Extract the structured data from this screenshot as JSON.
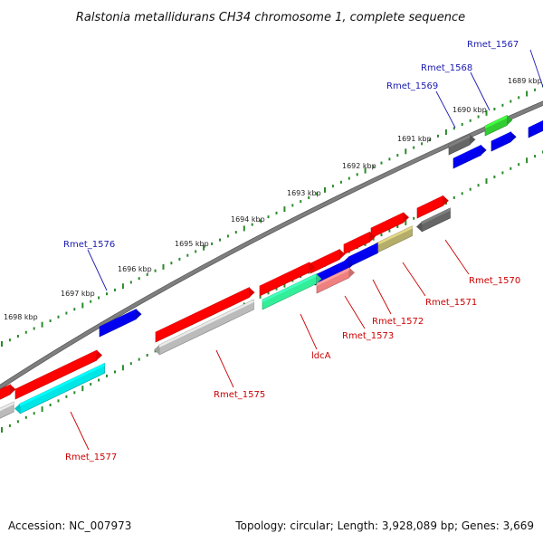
{
  "title": "Ralstonia metallidurans CH34 chromosome 1, complete sequence",
  "footer": {
    "accession": "Accession: NC_007973",
    "topology": "Topology: circular; Length: 3,928,089 bp; Genes: 3,669"
  },
  "scale_labels": [
    "1689 kbp",
    "1690 kbp",
    "1691 kbp",
    "1692 kbp",
    "1693 kbp",
    "1694 kbp",
    "1695 kbp",
    "1696 kbp",
    "1697 kbp",
    "1698 kbp"
  ],
  "colors": {
    "backbone": "#7f7f80",
    "tick": "#2a8a2a",
    "label_blue": "#1a1ab0",
    "label_red": "#cc0000",
    "red": "#ff0000",
    "blue": "#0000ee",
    "green": "#33cc33",
    "dark_gray": "#666666",
    "light_gray": "#bbbbbb",
    "cyan": "#00e5e5",
    "aqua_green": "#33ee99",
    "salmon": "#ee8080",
    "khaki": "#b5ad6a"
  },
  "gene_labels": {
    "blue": [
      "Rmet_1567",
      "Rmet_1568",
      "Rmet_1569",
      "Rmet_1576"
    ],
    "red": [
      "Rmet_1570",
      "Rmet_1571",
      "Rmet_1572",
      "Rmet_1573",
      "ldcA",
      "Rmet_1575",
      "Rmet_1577"
    ]
  }
}
